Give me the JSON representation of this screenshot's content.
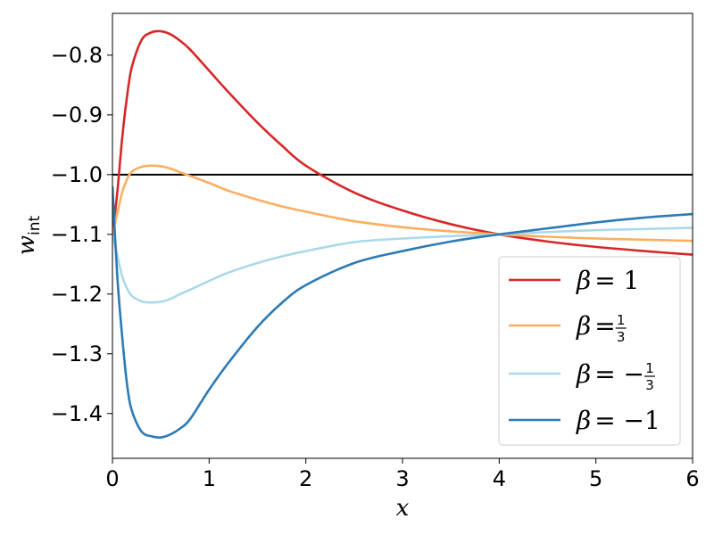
{
  "chart_data": {
    "type": "line",
    "xlabel": "x",
    "ylabel": "w",
    "ylabel_subscript": "int",
    "xlim": [
      0,
      6
    ],
    "ylim": [
      -1.475,
      -0.73
    ],
    "xticks": [
      0,
      1,
      2,
      3,
      4,
      5,
      6
    ],
    "xtick_labels": [
      "0",
      "1",
      "2",
      "3",
      "4",
      "5",
      "6"
    ],
    "yticks": [
      -0.8,
      -0.9,
      -1.0,
      -1.1,
      -1.2,
      -1.3,
      -1.4
    ],
    "ytick_labels": [
      "−0.8",
      "−0.9",
      "−1.0",
      "−1.1",
      "−1.2",
      "−1.3",
      "−1.4"
    ],
    "grid": false,
    "legend_position": "lower-right",
    "reference_line": {
      "y": -1.0,
      "color": "#000000"
    },
    "x": [
      0,
      0.05,
      0.1,
      0.15,
      0.2,
      0.3,
      0.4,
      0.5,
      0.6,
      0.7,
      0.8,
      1.0,
      1.2,
      1.5,
      1.75,
      2.0,
      2.5,
      3.0,
      3.5,
      4.0,
      4.5,
      5.0,
      5.5,
      6.0
    ],
    "series": [
      {
        "legend_prefix": "β",
        "legend_sign": "= 1",
        "color": "#d62728",
        "values": [
          -1.1,
          -1.03,
          -0.94,
          -0.87,
          -0.82,
          -0.775,
          -0.762,
          -0.76,
          -0.765,
          -0.776,
          -0.79,
          -0.826,
          -0.862,
          -0.913,
          -0.951,
          -0.985,
          -1.03,
          -1.06,
          -1.083,
          -1.1,
          -1.112,
          -1.121,
          -1.128,
          -1.134
        ]
      },
      {
        "legend_prefix": "β",
        "legend_sign": "=",
        "legend_fraction": [
          "1",
          "3"
        ],
        "color": "#fdae61",
        "values": [
          -1.1,
          -1.065,
          -1.03,
          -1.008,
          -0.995,
          -0.987,
          -0.985,
          -0.986,
          -0.99,
          -0.996,
          -1.002,
          -1.014,
          -1.027,
          -1.042,
          -1.053,
          -1.062,
          -1.078,
          -1.088,
          -1.095,
          -1.1,
          -1.104,
          -1.107,
          -1.109,
          -1.111
        ]
      },
      {
        "legend_prefix": "β",
        "legend_sign": "= −",
        "legend_fraction": [
          "1",
          "3"
        ],
        "color": "#abd9e9",
        "values": [
          -1.1,
          -1.135,
          -1.17,
          -1.19,
          -1.203,
          -1.212,
          -1.214,
          -1.213,
          -1.208,
          -1.2,
          -1.193,
          -1.178,
          -1.164,
          -1.148,
          -1.137,
          -1.128,
          -1.113,
          -1.107,
          -1.103,
          -1.1,
          -1.096,
          -1.093,
          -1.091,
          -1.089
        ]
      },
      {
        "legend_prefix": "β",
        "legend_sign": "= −1",
        "color": "#2c7bb6",
        "values": [
          -1.02,
          -1.17,
          -1.27,
          -1.35,
          -1.395,
          -1.43,
          -1.438,
          -1.44,
          -1.435,
          -1.425,
          -1.41,
          -1.36,
          -1.315,
          -1.255,
          -1.215,
          -1.185,
          -1.148,
          -1.128,
          -1.112,
          -1.1,
          -1.09,
          -1.08,
          -1.072,
          -1.066
        ]
      }
    ]
  }
}
